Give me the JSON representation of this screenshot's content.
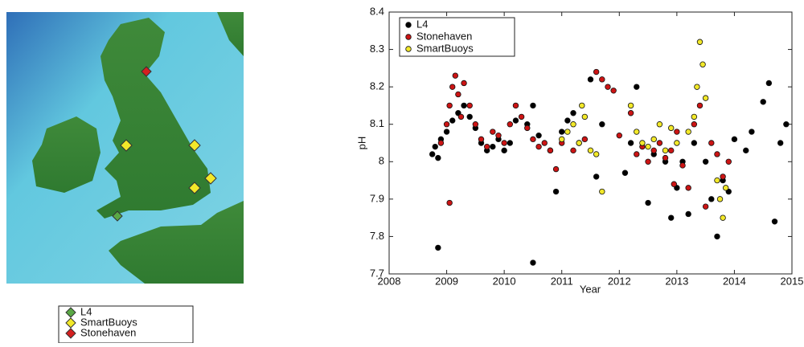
{
  "chart_data": {
    "type": "scatter",
    "xlabel": "Year",
    "ylabel": "pH",
    "xlim": [
      2008,
      2015
    ],
    "xticks": [
      2008,
      2009,
      2010,
      2011,
      2012,
      2013,
      2014,
      2015
    ],
    "ylim": [
      7.7,
      8.4
    ],
    "yticks": [
      7.7,
      7.8,
      7.9,
      8,
      8.1,
      8.2,
      8.3,
      8.4
    ],
    "legend": "upper left",
    "series": [
      {
        "name": "L4",
        "color": "#000000",
        "x": [
          2008.75,
          2008.8,
          2008.85,
          2008.9,
          2009.0,
          2009.1,
          2009.2,
          2009.3,
          2009.4,
          2009.5,
          2009.6,
          2009.7,
          2009.8,
          2009.9,
          2010.0,
          2010.1,
          2010.2,
          2010.4,
          2010.5,
          2010.6,
          2010.8,
          2010.9,
          2011.0,
          2011.1,
          2011.2,
          2011.3,
          2011.5,
          2011.6,
          2011.7,
          2012.1,
          2012.2,
          2012.3,
          2012.5,
          2012.6,
          2012.8,
          2012.9,
          2013.0,
          2013.1,
          2013.2,
          2013.3,
          2013.5,
          2013.6,
          2013.7,
          2013.8,
          2013.9,
          2014.0,
          2014.2,
          2014.3,
          2014.5,
          2014.6,
          2014.7,
          2014.8,
          2014.9,
          2008.85,
          2010.5
        ],
        "values": [
          8.02,
          8.04,
          8.01,
          8.06,
          8.08,
          8.11,
          8.13,
          8.15,
          8.12,
          8.09,
          8.05,
          8.03,
          8.04,
          8.06,
          8.03,
          8.05,
          8.11,
          8.1,
          8.15,
          8.07,
          8.03,
          7.92,
          8.08,
          8.11,
          8.13,
          8.05,
          8.22,
          7.96,
          8.1,
          7.97,
          8.05,
          8.2,
          7.89,
          8.02,
          8.0,
          7.85,
          7.93,
          8.0,
          7.86,
          8.05,
          8.0,
          7.9,
          7.8,
          7.95,
          7.92,
          8.06,
          8.03,
          8.08,
          8.16,
          8.21,
          7.84,
          8.05,
          8.1,
          7.77,
          7.73
        ]
      },
      {
        "name": "Stonehaven",
        "color": "#cc1414",
        "x": [
          2008.9,
          2009.0,
          2009.05,
          2009.1,
          2009.15,
          2009.2,
          2009.25,
          2009.3,
          2009.4,
          2009.5,
          2009.6,
          2009.7,
          2009.8,
          2009.9,
          2010.0,
          2010.1,
          2010.2,
          2010.3,
          2010.4,
          2010.5,
          2010.6,
          2010.7,
          2010.8,
          2010.9,
          2011.0,
          2011.2,
          2011.4,
          2011.6,
          2011.7,
          2011.8,
          2011.9,
          2012.0,
          2012.2,
          2012.3,
          2012.4,
          2012.5,
          2012.6,
          2012.7,
          2012.8,
          2012.9,
          2013.0,
          2013.1,
          2013.2,
          2013.3,
          2013.4,
          2013.5,
          2013.6,
          2013.7,
          2013.8,
          2013.9,
          2009.05,
          2012.95
        ],
        "values": [
          8.05,
          8.1,
          8.15,
          8.2,
          8.23,
          8.18,
          8.12,
          8.21,
          8.15,
          8.1,
          8.06,
          8.04,
          8.08,
          8.07,
          8.05,
          8.1,
          8.15,
          8.12,
          8.09,
          8.06,
          8.04,
          8.05,
          8.03,
          7.98,
          8.05,
          8.03,
          8.06,
          8.24,
          8.22,
          8.2,
          8.19,
          8.07,
          8.13,
          8.02,
          8.04,
          8.0,
          8.03,
          8.05,
          8.01,
          8.03,
          8.08,
          7.99,
          7.93,
          8.1,
          8.15,
          7.88,
          8.05,
          8.02,
          7.96,
          8.0,
          7.89,
          7.94
        ]
      },
      {
        "name": "SmartBuoys",
        "color": "#f2e829",
        "x": [
          2011.0,
          2011.1,
          2011.2,
          2011.3,
          2011.35,
          2011.4,
          2011.5,
          2011.6,
          2011.7,
          2012.2,
          2012.3,
          2012.4,
          2012.5,
          2012.6,
          2012.7,
          2012.8,
          2012.9,
          2013.0,
          2013.2,
          2013.3,
          2013.35,
          2013.4,
          2013.45,
          2013.5,
          2013.7,
          2013.75,
          2013.8,
          2013.85
        ],
        "values": [
          8.06,
          8.08,
          8.1,
          8.05,
          8.15,
          8.12,
          8.03,
          8.02,
          7.92,
          8.15,
          8.08,
          8.05,
          8.04,
          8.06,
          8.1,
          8.03,
          8.09,
          8.05,
          8.08,
          8.12,
          8.2,
          8.32,
          8.26,
          8.17,
          7.95,
          7.9,
          7.85,
          7.93
        ]
      }
    ]
  },
  "map": {
    "legend": [
      {
        "label": "L4",
        "color": "#5aa846"
      },
      {
        "label": "SmartBuoys",
        "color": "#f2e829"
      },
      {
        "label": "Stonehaven",
        "color": "#d42020"
      }
    ]
  }
}
